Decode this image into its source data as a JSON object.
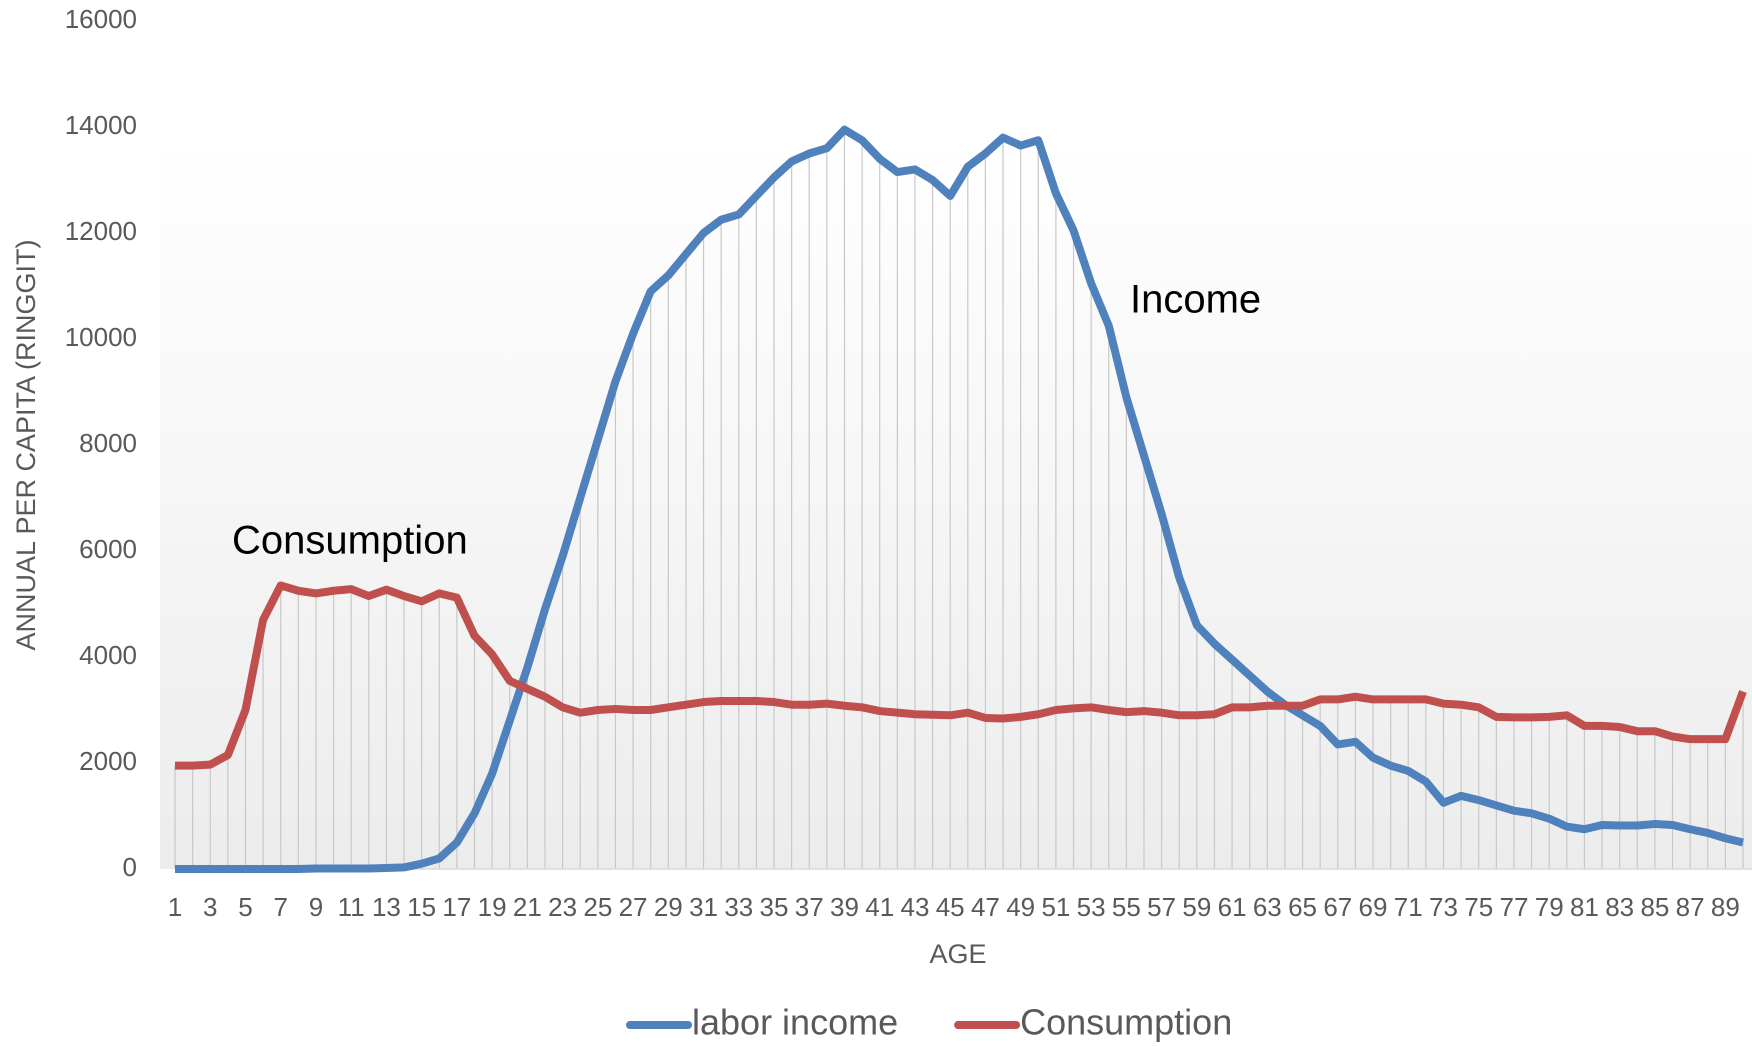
{
  "chart_data": {
    "type": "line",
    "xlabel": "AGE",
    "ylabel": "ANNUAL PER CAPITA (RINGGIT)",
    "annotations": [
      "Income",
      "Consumption"
    ],
    "categories": [
      "1",
      null,
      "3",
      null,
      "5",
      null,
      "7",
      null,
      "9",
      null,
      "11",
      null,
      "13",
      null,
      "15",
      null,
      "17",
      null,
      "19",
      null,
      "21",
      null,
      "23",
      null,
      "25",
      null,
      "27",
      null,
      "29",
      null,
      "31",
      null,
      "33",
      null,
      "35",
      null,
      "37",
      null,
      "39",
      null,
      "41",
      null,
      "43",
      null,
      "45",
      null,
      "47",
      null,
      "49",
      null,
      "51",
      null,
      "53",
      null,
      "55",
      null,
      "57",
      null,
      "59",
      null,
      "61",
      null,
      "63",
      null,
      "65",
      null,
      "67",
      null,
      "69",
      null,
      "71",
      null,
      "73",
      null,
      "75",
      null,
      "77",
      null,
      "79",
      null,
      "81",
      null,
      "83",
      null,
      "85",
      null,
      "87",
      null,
      "89",
      null
    ],
    "series": [
      {
        "name": "labor income",
        "color": "#4f81bd",
        "values": [
          0,
          0,
          0,
          0,
          0,
          0,
          0,
          0,
          10,
          10,
          10,
          10,
          20,
          30,
          100,
          200,
          500,
          1050,
          1800,
          2800,
          3800,
          4900,
          5900,
          7000,
          8100,
          9200,
          10100,
          10900,
          11200,
          11600,
          12000,
          12250,
          12350,
          12700,
          13050,
          13350,
          13500,
          13600,
          13950,
          13750,
          13400,
          13150,
          13200,
          13000,
          12700,
          13250,
          13500,
          13800,
          13650,
          13750,
          12750,
          12050,
          11050,
          10250,
          8900,
          7800,
          6700,
          5500,
          4600,
          4250,
          3950,
          3650,
          3350,
          3100,
          2900,
          2700,
          2350,
          2400,
          2100,
          1950,
          1850,
          1650,
          1250,
          1380,
          1300,
          1200,
          1100,
          1050,
          950,
          800,
          750,
          830,
          820,
          820,
          850,
          830,
          750,
          680,
          580,
          500
        ]
      },
      {
        "name": "Consumption",
        "color": "#c0504d",
        "values": [
          1950,
          1950,
          1970,
          2150,
          3000,
          4700,
          5350,
          5250,
          5200,
          5250,
          5280,
          5150,
          5270,
          5150,
          5050,
          5200,
          5120,
          4400,
          4050,
          3550,
          3400,
          3250,
          3050,
          2950,
          3000,
          3020,
          3000,
          3000,
          3050,
          3100,
          3150,
          3170,
          3170,
          3170,
          3150,
          3100,
          3100,
          3120,
          3080,
          3050,
          2980,
          2950,
          2920,
          2910,
          2900,
          2950,
          2850,
          2840,
          2870,
          2920,
          3000,
          3030,
          3050,
          3000,
          2960,
          2980,
          2950,
          2900,
          2900,
          2920,
          3050,
          3050,
          3080,
          3080,
          3080,
          3200,
          3200,
          3250,
          3200,
          3200,
          3200,
          3200,
          3120,
          3100,
          3050,
          2870,
          2860,
          2860,
          2870,
          2900,
          2700,
          2700,
          2680,
          2600,
          2600,
          2500,
          2450,
          2450,
          2450,
          3350
        ]
      }
    ],
    "ylim": [
      0,
      16000
    ],
    "yticks": [
      0,
      2000,
      4000,
      6000,
      8000,
      10000,
      12000,
      14000,
      16000
    ],
    "grid": false,
    "legend": "bottom"
  }
}
